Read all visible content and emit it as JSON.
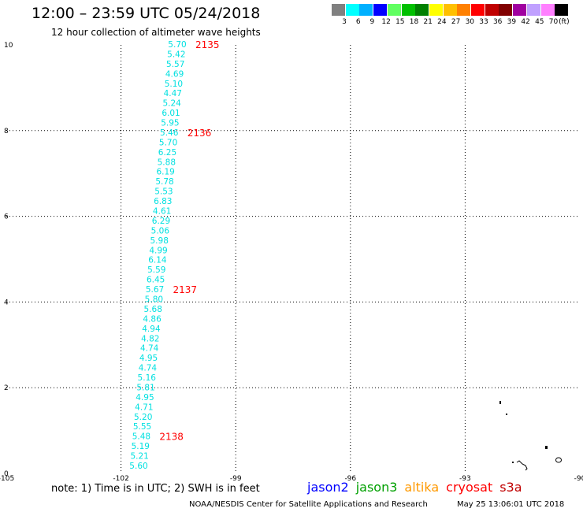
{
  "header": {
    "title": "12:00 – 23:59 UTC 05/24/2018",
    "subtitle": "12 hour collection of altimeter wave heights"
  },
  "colorbar": {
    "unit_label": "(ft)",
    "bins": [
      {
        "label": "3",
        "color": "#808080"
      },
      {
        "label": "6",
        "color": "#00ffff"
      },
      {
        "label": "9",
        "color": "#00b0ff"
      },
      {
        "label": "12",
        "color": "#0000ff"
      },
      {
        "label": "15",
        "color": "#60ff60"
      },
      {
        "label": "18",
        "color": "#00c000"
      },
      {
        "label": "21",
        "color": "#008000"
      },
      {
        "label": "24",
        "color": "#ffff00"
      },
      {
        "label": "27",
        "color": "#ffc000"
      },
      {
        "label": "30",
        "color": "#ff8000"
      },
      {
        "label": "33",
        "color": "#ff0000"
      },
      {
        "label": "36",
        "color": "#c00000"
      },
      {
        "label": "39",
        "color": "#800000"
      },
      {
        "label": "42",
        "color": "#a000a0"
      },
      {
        "label": "45",
        "color": "#c0a0ff"
      },
      {
        "label": "70",
        "color": "#ff80ff"
      },
      {
        "label": "",
        "color": "#000000"
      }
    ]
  },
  "map": {
    "lon_range": [
      -105,
      -90
    ],
    "lat_range": [
      0,
      10
    ],
    "x_ticks": [
      "-105",
      "-102",
      "-99",
      "-96",
      "-93",
      "-90"
    ],
    "y_ticks": [
      "0",
      "2",
      "4",
      "6",
      "8",
      "10"
    ],
    "gridlines": true,
    "track_color": "#00e0e0",
    "time_color": "#ff0000",
    "swh_values": [
      "5.70",
      "5.42",
      "5.57",
      "4.69",
      "5.10",
      "4.47",
      "5.24",
      "6.01",
      "5.95",
      "5.46",
      "5.70",
      "6.25",
      "5.88",
      "6.19",
      "5.78",
      "5.53",
      "6.83",
      "4.61",
      "6.29",
      "5.06",
      "5.98",
      "4.99",
      "6.14",
      "5.59",
      "6.45",
      "5.67",
      "5.80",
      "5.68",
      "4.86",
      "4.94",
      "4.82",
      "4.74",
      "4.95",
      "4.74",
      "5.16",
      "5.81",
      "4.95",
      "4.71",
      "5.20",
      "5.55",
      "5.48",
      "5.19",
      "5.21",
      "5.60"
    ],
    "time_labels": [
      {
        "text": "2135",
        "index": 0
      },
      {
        "text": "2136",
        "index": 9
      },
      {
        "text": "2137",
        "index": 25
      },
      {
        "text": "2138",
        "index": 40
      }
    ]
  },
  "footer": {
    "note": "note:  1) Time is in UTC;  2) SWH is in feet",
    "missions": [
      {
        "name": "jason2",
        "color": "#0000ff"
      },
      {
        "name": "jason3",
        "color": "#00a000"
      },
      {
        "name": "altika",
        "color": "#ff9900"
      },
      {
        "name": "cryosat",
        "color": "#ff0000"
      },
      {
        "name": "s3a",
        "color": "#c00000"
      }
    ],
    "credit": "NOAA/NESDIS Center for Satellite Applications and Research",
    "timestamp": "May 25 13:06:01 UTC 2018"
  }
}
